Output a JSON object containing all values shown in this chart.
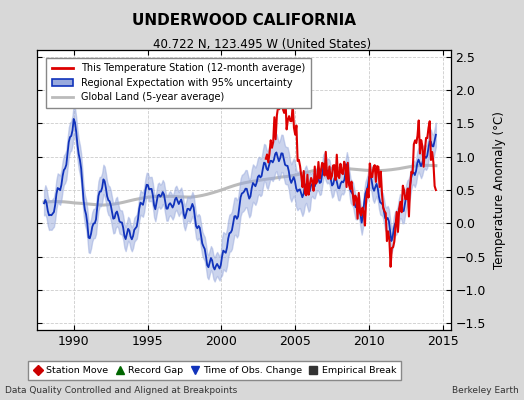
{
  "title": "UNDERWOOD CALIFORNIA",
  "subtitle": "40.722 N, 123.495 W (United States)",
  "ylabel": "Temperature Anomaly (°C)",
  "footer_left": "Data Quality Controlled and Aligned at Breakpoints",
  "footer_right": "Berkeley Earth",
  "xlim": [
    1987.5,
    2015.5
  ],
  "ylim": [
    -1.6,
    2.6
  ],
  "yticks": [
    -1.5,
    -1.0,
    -0.5,
    0.0,
    0.5,
    1.0,
    1.5,
    2.0,
    2.5
  ],
  "xticks": [
    1990,
    1995,
    2000,
    2005,
    2010,
    2015
  ],
  "background_color": "#d8d8d8",
  "plot_bg_color": "#ffffff",
  "red_color": "#dd0000",
  "blue_color": "#1133bb",
  "blue_fill_color": "#99aadd",
  "gray_color": "#bbbbbb",
  "legend_items": [
    "This Temperature Station (12-month average)",
    "Regional Expectation with 95% uncertainty",
    "Global Land (5-year average)"
  ],
  "bottom_legend": [
    {
      "symbol": "D",
      "color": "#cc0000",
      "label": "Station Move"
    },
    {
      "symbol": "^",
      "color": "#006600",
      "label": "Record Gap"
    },
    {
      "symbol": "v",
      "color": "#1133bb",
      "label": "Time of Obs. Change"
    },
    {
      "symbol": "s",
      "color": "#333333",
      "label": "Empirical Break"
    }
  ]
}
